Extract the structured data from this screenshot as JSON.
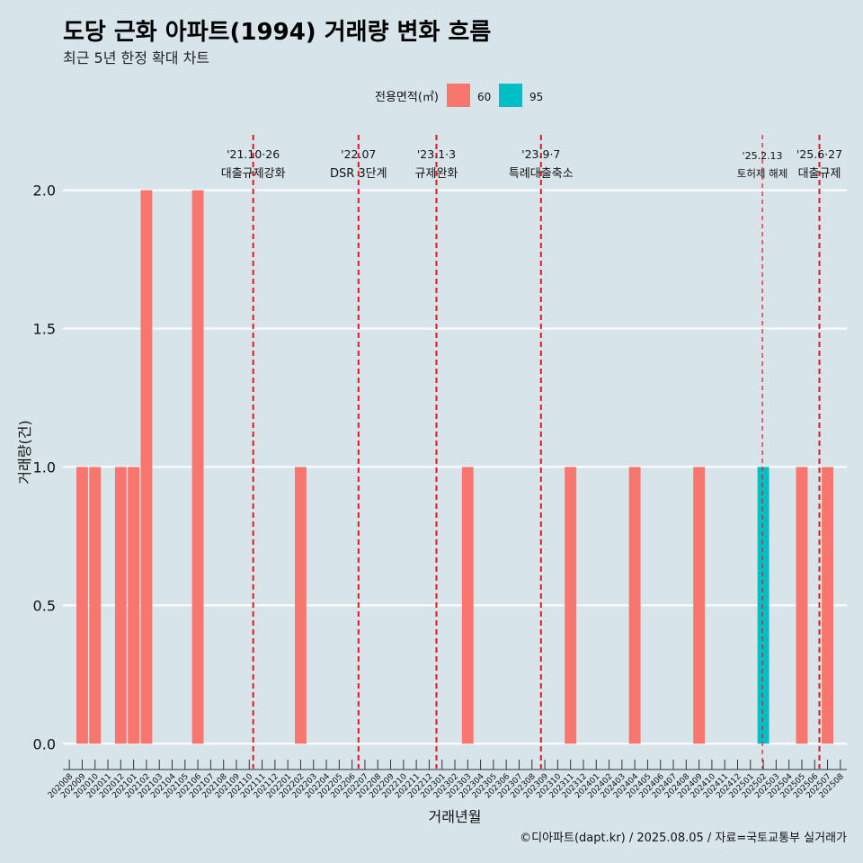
{
  "chart_data": {
    "type": "bar",
    "title": "도당 근화 아파트(1994) 거래량 변화 흐름",
    "subtitle": "최근 5년 한정 확대 차트",
    "xlabel": "거래년월",
    "ylabel": "거래량(건)",
    "ylim": [
      -0.09,
      2.2
    ],
    "yticks": [
      0.0,
      0.5,
      1.0,
      1.5,
      2.0
    ],
    "ytick_labels": [
      "0.0",
      "0.5",
      "1.0",
      "1.5",
      "2.0"
    ],
    "grid": true,
    "legend": {
      "title": "전용면적(㎡)",
      "position": "top",
      "entries": [
        {
          "name": "60",
          "color": "#f8766d"
        },
        {
          "name": "95",
          "color": "#00bfc4"
        }
      ]
    },
    "categories": [
      "202008",
      "202009",
      "202010",
      "202011",
      "202012",
      "202101",
      "202102",
      "202103",
      "202104",
      "202105",
      "202106",
      "202107",
      "202108",
      "202109",
      "202110",
      "202111",
      "202112",
      "202201",
      "202202",
      "202203",
      "202204",
      "202205",
      "202206",
      "202207",
      "202208",
      "202209",
      "202210",
      "202211",
      "202212",
      "202301",
      "202302",
      "202303",
      "202304",
      "202305",
      "202306",
      "202307",
      "202308",
      "202309",
      "202310",
      "202311",
      "202312",
      "202401",
      "202402",
      "202403",
      "202404",
      "202405",
      "202406",
      "202407",
      "202408",
      "202409",
      "202410",
      "202411",
      "202412",
      "202501",
      "202502",
      "202503",
      "202504",
      "202505",
      "202506",
      "202507",
      "202508"
    ],
    "bars": [
      {
        "x": "202009",
        "y": 1,
        "series": "60"
      },
      {
        "x": "202010",
        "y": 1,
        "series": "60"
      },
      {
        "x": "202012",
        "y": 1,
        "series": "60"
      },
      {
        "x": "202101",
        "y": 1,
        "series": "60"
      },
      {
        "x": "202102",
        "y": 2,
        "series": "60"
      },
      {
        "x": "202106",
        "y": 2,
        "series": "60"
      },
      {
        "x": "202202",
        "y": 1,
        "series": "60"
      },
      {
        "x": "202303",
        "y": 1,
        "series": "60"
      },
      {
        "x": "202311",
        "y": 1,
        "series": "60"
      },
      {
        "x": "202404",
        "y": 1,
        "series": "60"
      },
      {
        "x": "202409",
        "y": 1,
        "series": "60"
      },
      {
        "x": "202502",
        "y": 1,
        "series": "95"
      },
      {
        "x": "202505",
        "y": 1,
        "series": "60"
      },
      {
        "x": "202507",
        "y": 1,
        "series": "60"
      }
    ],
    "annotations": [
      {
        "date": "2021-10-26",
        "line1": "'21.10·26",
        "line2": "대출규제강화",
        "style": "thick"
      },
      {
        "date": "2022-07-01",
        "line1": "'22.07",
        "line2": "DSR 3단계",
        "style": "thick"
      },
      {
        "date": "2023-01-03",
        "line1": "'23.1·3",
        "line2": "규제완화",
        "style": "thick"
      },
      {
        "date": "2023-09-07",
        "line1": "'23.9·7",
        "line2": "특례대출축소",
        "style": "thick"
      },
      {
        "date": "2025-02-13",
        "line1": "'25.2.13",
        "line2": "토허제 해제",
        "style": "thin"
      },
      {
        "date": "2025-06-27",
        "line1": "'25.6·27",
        "line2": "대출규제",
        "style": "thick"
      }
    ],
    "caption": "©디아파트(dapt.kr) / 2025.08.05 / 자료=국토교통부 실거래가"
  }
}
